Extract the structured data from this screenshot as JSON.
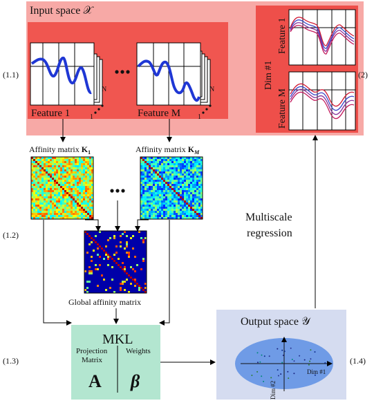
{
  "labels": {
    "input_space": "Input space 𝒳",
    "feature_1": "Feature 1",
    "feature_m": "Feature M",
    "stack_n": "N",
    "stack_1": "1",
    "affinity_k1_prefix": "Affinity matrix ",
    "affinity_k1_sym": "K",
    "affinity_k1_sub": "1",
    "affinity_km_prefix": "Affinity matrix ",
    "affinity_km_sym": "K",
    "affinity_km_sub": "M",
    "global_affinity": "Global affinity matrix",
    "mkl_title": "MKL",
    "projection_matrix": "Projection Matrix",
    "weights": "Weights",
    "mkl_A": "A",
    "mkl_beta": "β",
    "output_space": "Output space 𝒴",
    "dim1": "Dim #1",
    "dim2": "Dim #2",
    "multiscale": "Multiscale",
    "regression": "regression",
    "right_dim1": "Dim #1",
    "right_feature1": "Feature 1",
    "right_featureM": "Feature M"
  },
  "steps": {
    "s11": "(1.1)",
    "s12": "(1.2)",
    "s13": "(1.3)",
    "s14": "(1.4)",
    "s2": "(2)"
  },
  "colors": {
    "input_bg": "#f7a9a6",
    "feature_bg": "#f05650",
    "right_bg": "#ee4f4a",
    "mkl_bg": "#b3e6d0",
    "output_bg": "#d5dcf0",
    "ellipse": "#6f9be6",
    "curve": "#1f37d4",
    "heat_dark": "#0a1a8a"
  }
}
